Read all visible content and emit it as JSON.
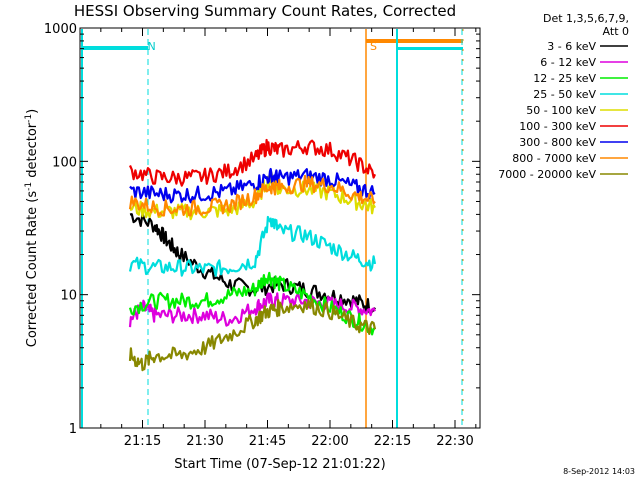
{
  "chart_data": {
    "type": "line",
    "title": "HESSI Observing Summary Count Rates, Corrected",
    "xlabel": "Start Time (07-Sep-12 21:01:22)",
    "ylabel_parts": {
      "main": "Corrected Count Rate (s",
      "sup1": "-1",
      "mid": " detector",
      "sup2": "-1",
      "end": ")"
    },
    "y_scale": "log",
    "ylim": [
      1,
      1000
    ],
    "xlim_minutes": [
      21.0,
      22.6
    ],
    "x_ticks": [
      {
        "t": 21.25,
        "label": "21:15"
      },
      {
        "t": 21.5,
        "label": "21:30"
      },
      {
        "t": 21.75,
        "label": "21:45"
      },
      {
        "t": 22.0,
        "label": "22:00"
      },
      {
        "t": 22.25,
        "label": "22:15"
      },
      {
        "t": 22.5,
        "label": "22:30"
      }
    ],
    "y_ticks": [
      {
        "v": 1,
        "label": "1"
      },
      {
        "v": 10,
        "label": "10"
      },
      {
        "v": 100,
        "label": "100"
      },
      {
        "v": 1000,
        "label": "1000"
      }
    ],
    "legend_header": [
      "Det 1,3,5,6,7,9,",
      "Att 0"
    ],
    "legend_placement": "right",
    "grid": false,
    "series": [
      {
        "name": "3 - 6 keV",
        "color": "#000000",
        "pts": [
          [
            21.2,
            40
          ],
          [
            21.3,
            33
          ],
          [
            21.35,
            25
          ],
          [
            21.4,
            20
          ],
          [
            21.5,
            15
          ],
          [
            21.6,
            12
          ],
          [
            21.7,
            11
          ],
          [
            21.8,
            12
          ],
          [
            21.9,
            11
          ],
          [
            22.0,
            10
          ],
          [
            22.1,
            9
          ],
          [
            22.18,
            8
          ]
        ]
      },
      {
        "name": "6 - 12 keV",
        "color": "#dd00dd",
        "pts": [
          [
            21.2,
            6.5
          ],
          [
            21.25,
            8
          ],
          [
            21.3,
            7
          ],
          [
            21.4,
            7
          ],
          [
            21.5,
            7
          ],
          [
            21.6,
            6.5
          ],
          [
            21.7,
            8
          ],
          [
            21.75,
            9
          ],
          [
            21.8,
            9
          ],
          [
            21.9,
            9
          ],
          [
            22.0,
            8.5
          ],
          [
            22.1,
            8
          ],
          [
            22.18,
            7.5
          ]
        ]
      },
      {
        "name": "12 - 25 keV",
        "color": "#00ee00",
        "pts": [
          [
            21.2,
            8
          ],
          [
            21.3,
            9
          ],
          [
            21.4,
            9
          ],
          [
            21.5,
            9
          ],
          [
            21.6,
            10
          ],
          [
            21.7,
            11
          ],
          [
            21.75,
            14
          ],
          [
            21.8,
            12
          ],
          [
            21.9,
            10
          ],
          [
            22.0,
            8
          ],
          [
            22.1,
            6.5
          ],
          [
            22.18,
            5.5
          ]
        ]
      },
      {
        "name": "25 - 50 keV",
        "color": "#00dddd",
        "pts": [
          [
            21.2,
            17
          ],
          [
            21.3,
            16
          ],
          [
            21.4,
            16
          ],
          [
            21.5,
            15.5
          ],
          [
            21.6,
            16
          ],
          [
            21.7,
            18
          ],
          [
            21.76,
            38
          ],
          [
            21.8,
            30
          ],
          [
            21.9,
            28
          ],
          [
            22.0,
            23
          ],
          [
            22.1,
            19
          ],
          [
            22.18,
            17
          ]
        ]
      },
      {
        "name": "50 - 100 keV",
        "color": "#dddd00",
        "pts": [
          [
            21.2,
            45
          ],
          [
            21.3,
            42
          ],
          [
            21.4,
            42
          ],
          [
            21.5,
            42
          ],
          [
            21.6,
            43
          ],
          [
            21.7,
            50
          ],
          [
            21.76,
            75
          ],
          [
            21.8,
            62
          ],
          [
            21.9,
            62
          ],
          [
            22.0,
            58
          ],
          [
            22.1,
            50
          ],
          [
            22.18,
            45
          ]
        ]
      },
      {
        "name": "100 - 300 keV",
        "color": "#ee0000",
        "pts": [
          [
            21.2,
            85
          ],
          [
            21.3,
            76
          ],
          [
            21.4,
            75
          ],
          [
            21.5,
            77
          ],
          [
            21.6,
            85
          ],
          [
            21.7,
            105
          ],
          [
            21.75,
            130
          ],
          [
            21.8,
            120
          ],
          [
            21.9,
            130
          ],
          [
            22.0,
            122
          ],
          [
            22.1,
            100
          ],
          [
            22.18,
            80
          ]
        ]
      },
      {
        "name": "300 - 800 keV",
        "color": "#0000ee",
        "pts": [
          [
            21.2,
            60
          ],
          [
            21.3,
            57
          ],
          [
            21.4,
            56
          ],
          [
            21.5,
            57
          ],
          [
            21.6,
            60
          ],
          [
            21.7,
            68
          ],
          [
            21.76,
            78
          ],
          [
            21.8,
            75
          ],
          [
            21.9,
            78
          ],
          [
            22.0,
            74
          ],
          [
            22.1,
            64
          ],
          [
            22.18,
            58
          ]
        ]
      },
      {
        "name": "800 - 7000 keV",
        "color": "#ff8800",
        "pts": [
          [
            21.2,
            50
          ],
          [
            21.3,
            45
          ],
          [
            21.4,
            44
          ],
          [
            21.5,
            45
          ],
          [
            21.6,
            47
          ],
          [
            21.7,
            55
          ],
          [
            21.76,
            65
          ],
          [
            21.8,
            64
          ],
          [
            21.9,
            68
          ],
          [
            22.0,
            66
          ],
          [
            22.1,
            56
          ],
          [
            22.18,
            50
          ]
        ]
      },
      {
        "name": "7000 - 20000 keV",
        "color": "#888800",
        "pts": [
          [
            21.2,
            3.5
          ],
          [
            21.25,
            3
          ],
          [
            21.3,
            3.5
          ],
          [
            21.4,
            3.5
          ],
          [
            21.5,
            4
          ],
          [
            21.6,
            5
          ],
          [
            21.7,
            6.5
          ],
          [
            21.75,
            7.5
          ],
          [
            21.8,
            8
          ],
          [
            21.9,
            8.5
          ],
          [
            22.0,
            7.5
          ],
          [
            22.1,
            6
          ],
          [
            22.18,
            5.5
          ]
        ]
      }
    ],
    "annotations": [
      {
        "text": "N",
        "t": 21.27,
        "color": "#00cccc"
      },
      {
        "text": "S",
        "t": 22.16,
        "color": "#ff8800"
      }
    ],
    "stamp": "8-Sep-2012 14:03"
  }
}
